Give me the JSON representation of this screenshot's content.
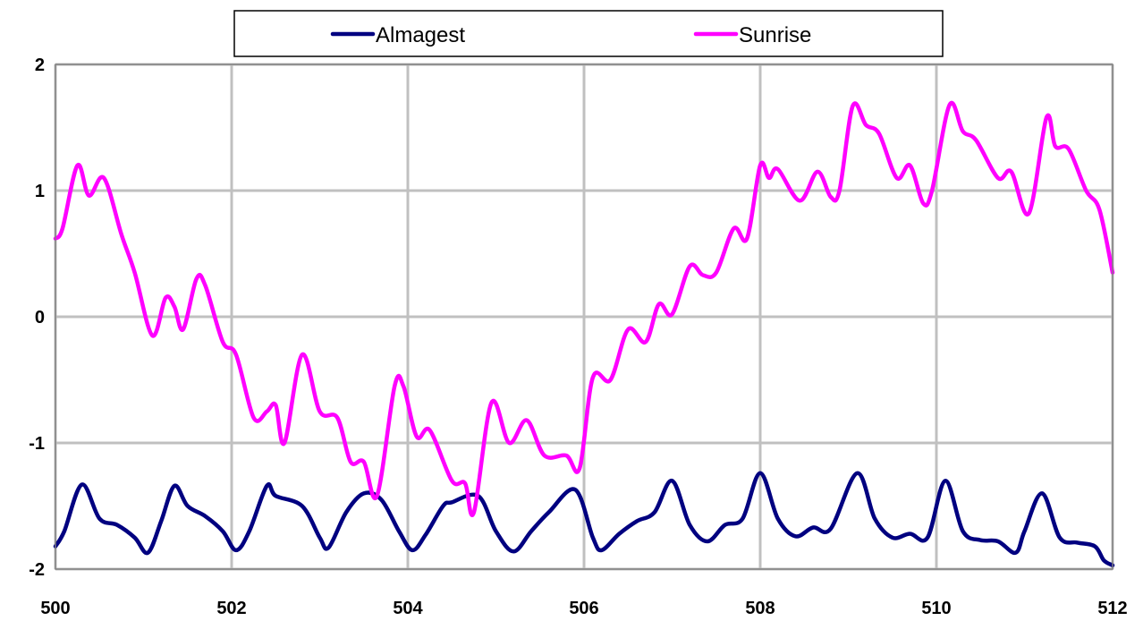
{
  "chart_data": {
    "type": "line",
    "title": "",
    "xlabel": "",
    "ylabel": "",
    "xlim": [
      500,
      512
    ],
    "ylim": [
      -2,
      2
    ],
    "x_ticks": [
      "500",
      "502",
      "504",
      "506",
      "508",
      "510",
      "512"
    ],
    "y_ticks": [
      "2",
      "1",
      "0",
      "-1",
      "-2"
    ],
    "grid": "on",
    "legend_position": "top-center",
    "series": [
      {
        "name": "Almagest",
        "color": "#000080",
        "x": [
          500.0,
          500.1,
          500.3,
          500.5,
          500.7,
          500.9,
          501.05,
          501.2,
          501.35,
          501.5,
          501.7,
          501.9,
          502.05,
          502.2,
          502.4,
          502.5,
          502.8,
          503.0,
          503.1,
          503.3,
          503.5,
          503.7,
          503.9,
          504.05,
          504.2,
          504.4,
          504.5,
          504.8,
          505.0,
          505.2,
          505.4,
          505.6,
          505.9,
          506.1,
          506.2,
          506.4,
          506.6,
          506.8,
          507.0,
          507.2,
          507.4,
          507.6,
          507.8,
          508.0,
          508.2,
          508.4,
          508.6,
          508.8,
          509.1,
          509.3,
          509.5,
          509.7,
          509.9,
          510.1,
          510.3,
          510.5,
          510.7,
          510.9,
          511.0,
          511.2,
          511.4,
          511.6,
          511.8,
          511.9,
          512.0
        ],
        "y": [
          -1.82,
          -1.7,
          -1.33,
          -1.6,
          -1.65,
          -1.75,
          -1.87,
          -1.62,
          -1.34,
          -1.5,
          -1.58,
          -1.7,
          -1.85,
          -1.7,
          -1.34,
          -1.42,
          -1.5,
          -1.75,
          -1.83,
          -1.55,
          -1.4,
          -1.45,
          -1.7,
          -1.85,
          -1.73,
          -1.5,
          -1.47,
          -1.42,
          -1.7,
          -1.86,
          -1.7,
          -1.55,
          -1.37,
          -1.75,
          -1.85,
          -1.72,
          -1.62,
          -1.55,
          -1.3,
          -1.65,
          -1.78,
          -1.65,
          -1.6,
          -1.24,
          -1.6,
          -1.74,
          -1.67,
          -1.68,
          -1.24,
          -1.6,
          -1.75,
          -1.72,
          -1.75,
          -1.3,
          -1.7,
          -1.77,
          -1.78,
          -1.87,
          -1.7,
          -1.4,
          -1.75,
          -1.79,
          -1.82,
          -1.93,
          -1.97
        ]
      },
      {
        "name": "Sunrise",
        "color": "#ff00ff",
        "x": [
          500.0,
          500.08,
          500.25,
          500.38,
          500.55,
          500.75,
          500.9,
          501.1,
          501.25,
          501.35,
          501.45,
          501.6,
          501.7,
          501.9,
          502.05,
          502.25,
          502.4,
          502.5,
          502.6,
          502.8,
          503.0,
          503.2,
          503.35,
          503.5,
          503.65,
          503.85,
          503.95,
          504.1,
          504.25,
          504.5,
          504.65,
          504.75,
          504.95,
          505.15,
          505.35,
          505.55,
          505.8,
          505.95,
          506.1,
          506.3,
          506.5,
          506.7,
          506.85,
          507.0,
          507.2,
          507.35,
          507.5,
          507.7,
          507.85,
          508.0,
          508.1,
          508.2,
          508.45,
          508.65,
          508.8,
          508.9,
          509.05,
          509.2,
          509.35,
          509.55,
          509.7,
          509.85,
          509.95,
          510.15,
          510.3,
          510.45,
          510.7,
          510.85,
          511.05,
          511.25,
          511.35,
          511.5,
          511.7,
          511.85,
          512.0
        ],
        "y": [
          0.62,
          0.7,
          1.2,
          0.96,
          1.1,
          0.65,
          0.35,
          -0.15,
          0.15,
          0.08,
          -0.1,
          0.3,
          0.25,
          -0.2,
          -0.3,
          -0.8,
          -0.75,
          -0.7,
          -1.0,
          -0.3,
          -0.75,
          -0.8,
          -1.15,
          -1.15,
          -1.42,
          -0.55,
          -0.55,
          -0.95,
          -0.9,
          -1.3,
          -1.32,
          -1.55,
          -0.68,
          -1.0,
          -0.82,
          -1.1,
          -1.1,
          -1.2,
          -0.48,
          -0.5,
          -0.1,
          -0.2,
          0.1,
          0.02,
          0.4,
          0.33,
          0.35,
          0.7,
          0.62,
          1.2,
          1.1,
          1.17,
          0.92,
          1.15,
          0.95,
          1.0,
          1.67,
          1.52,
          1.45,
          1.1,
          1.2,
          0.9,
          1.0,
          1.68,
          1.47,
          1.4,
          1.1,
          1.15,
          0.82,
          1.58,
          1.35,
          1.33,
          1.0,
          0.85,
          0.35
        ]
      }
    ]
  }
}
